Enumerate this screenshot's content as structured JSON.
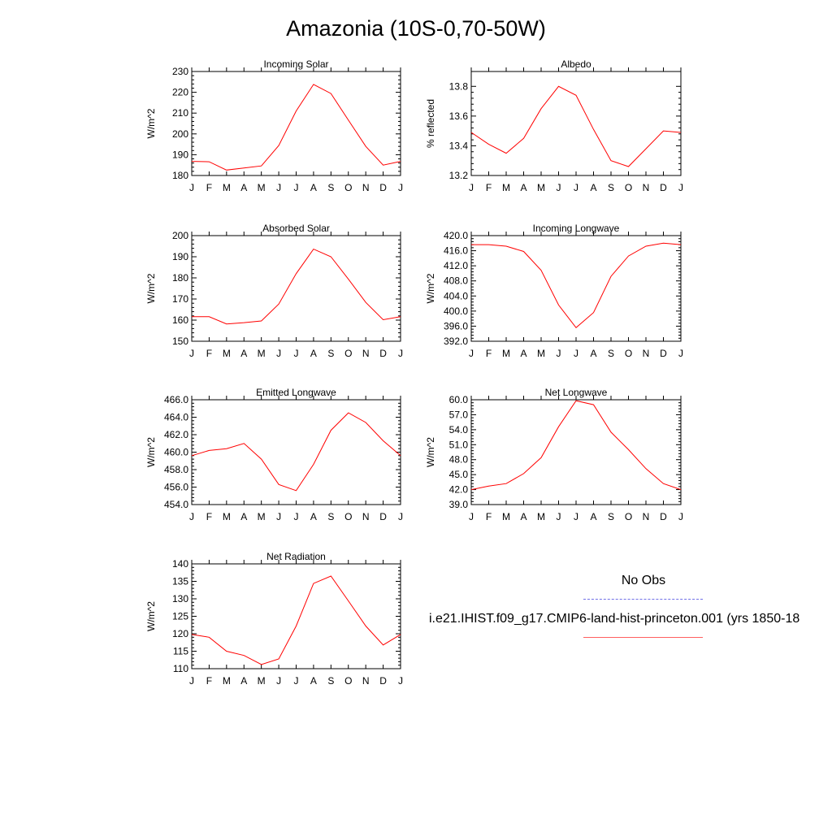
{
  "title": "Amazonia (10S-0,70-50W)",
  "legend": {
    "obs_label": "No Obs",
    "obs_color": "#7070e8",
    "model_label": "i.e21.IHIST.f09_g17.CMIP6-land-hist-princeton.001 (yrs 1850-18",
    "model_color": "#ff0000"
  },
  "chart_data": [
    {
      "type": "line",
      "title": "Incoming Solar",
      "ylabel": "W/m^2",
      "categories": [
        "J",
        "F",
        "M",
        "A",
        "M",
        "J",
        "J",
        "A",
        "S",
        "O",
        "N",
        "D",
        "J"
      ],
      "ylim": [
        180,
        230
      ],
      "yticks": [
        "180",
        "190",
        "200",
        "210",
        "220",
        "230"
      ],
      "series": [
        {
          "values": [
            186.8,
            186.6,
            182.6,
            183.6,
            184.6,
            194.4,
            211.0,
            223.8,
            219.4,
            206.6,
            194.0,
            185.0,
            186.8
          ],
          "color": "#ff0000"
        }
      ]
    },
    {
      "type": "line",
      "title": "Albedo",
      "ylabel": "% reflected",
      "categories": [
        "J",
        "F",
        "M",
        "A",
        "M",
        "J",
        "J",
        "A",
        "S",
        "O",
        "N",
        "D",
        "J"
      ],
      "ylim": [
        13.2,
        13.9
      ],
      "yticks": [
        "13.2",
        "13.4",
        "13.6",
        "13.8"
      ],
      "series": [
        {
          "values": [
            13.49,
            13.41,
            13.35,
            13.45,
            13.65,
            13.8,
            13.74,
            13.51,
            13.3,
            13.26,
            13.38,
            13.5,
            13.49
          ],
          "color": "#ff0000"
        }
      ]
    },
    {
      "type": "line",
      "title": "Absorbed Solar",
      "ylabel": "W/m^2",
      "categories": [
        "J",
        "F",
        "M",
        "A",
        "M",
        "J",
        "J",
        "A",
        "S",
        "O",
        "N",
        "D",
        "J"
      ],
      "ylim": [
        150,
        200
      ],
      "yticks": [
        "150",
        "160",
        "170",
        "180",
        "190",
        "200"
      ],
      "series": [
        {
          "values": [
            161.6,
            161.6,
            158.2,
            158.8,
            159.6,
            167.6,
            182.0,
            193.6,
            190.0,
            179.4,
            168.4,
            160.2,
            161.6
          ],
          "color": "#ff0000"
        }
      ]
    },
    {
      "type": "line",
      "title": "Incoming Longwave",
      "ylabel": "W/m^2",
      "categories": [
        "J",
        "F",
        "M",
        "A",
        "M",
        "J",
        "J",
        "A",
        "S",
        "O",
        "N",
        "D",
        "J"
      ],
      "ylim": [
        392,
        420
      ],
      "yticks": [
        "392.0",
        "396.0",
        "400.0",
        "404.0",
        "408.0",
        "412.0",
        "416.0",
        "420.0"
      ],
      "series": [
        {
          "values": [
            417.6,
            417.6,
            417.2,
            415.8,
            410.8,
            401.6,
            395.6,
            399.6,
            409.2,
            414.6,
            417.2,
            418.0,
            417.6
          ],
          "color": "#ff0000"
        }
      ]
    },
    {
      "type": "line",
      "title": "Emitted Longwave",
      "ylabel": "W/m^2",
      "categories": [
        "J",
        "F",
        "M",
        "A",
        "M",
        "J",
        "J",
        "A",
        "S",
        "O",
        "N",
        "D",
        "J"
      ],
      "ylim": [
        454,
        466
      ],
      "yticks": [
        "454.0",
        "456.0",
        "458.0",
        "460.0",
        "462.0",
        "464.0",
        "466.0"
      ],
      "series": [
        {
          "values": [
            459.6,
            460.2,
            460.4,
            461.0,
            459.2,
            456.3,
            455.6,
            458.6,
            462.5,
            464.5,
            463.4,
            461.3,
            459.6
          ],
          "color": "#ff0000"
        }
      ]
    },
    {
      "type": "line",
      "title": "Net Longwave",
      "ylabel": "W/m^2",
      "categories": [
        "J",
        "F",
        "M",
        "A",
        "M",
        "J",
        "J",
        "A",
        "S",
        "O",
        "N",
        "D",
        "J"
      ],
      "ylim": [
        39,
        60
      ],
      "yticks": [
        "39.0",
        "42.0",
        "45.0",
        "48.0",
        "51.0",
        "54.0",
        "57.0",
        "60.0"
      ],
      "series": [
        {
          "values": [
            42.0,
            42.7,
            43.2,
            45.2,
            48.4,
            54.6,
            59.8,
            59.0,
            53.5,
            50.0,
            46.2,
            43.2,
            42.0
          ],
          "color": "#ff0000"
        }
      ]
    },
    {
      "type": "line",
      "title": "Net Radiation",
      "ylabel": "W/m^2",
      "categories": [
        "J",
        "F",
        "M",
        "A",
        "M",
        "J",
        "J",
        "A",
        "S",
        "O",
        "N",
        "D",
        "J"
      ],
      "ylim": [
        110,
        140
      ],
      "yticks": [
        "110",
        "115",
        "120",
        "125",
        "130",
        "135",
        "140"
      ],
      "series": [
        {
          "values": [
            119.8,
            119.0,
            115.0,
            113.8,
            111.2,
            112.8,
            122.2,
            134.4,
            136.5,
            129.4,
            122.2,
            116.8,
            119.8
          ],
          "color": "#ff0000"
        }
      ]
    }
  ]
}
